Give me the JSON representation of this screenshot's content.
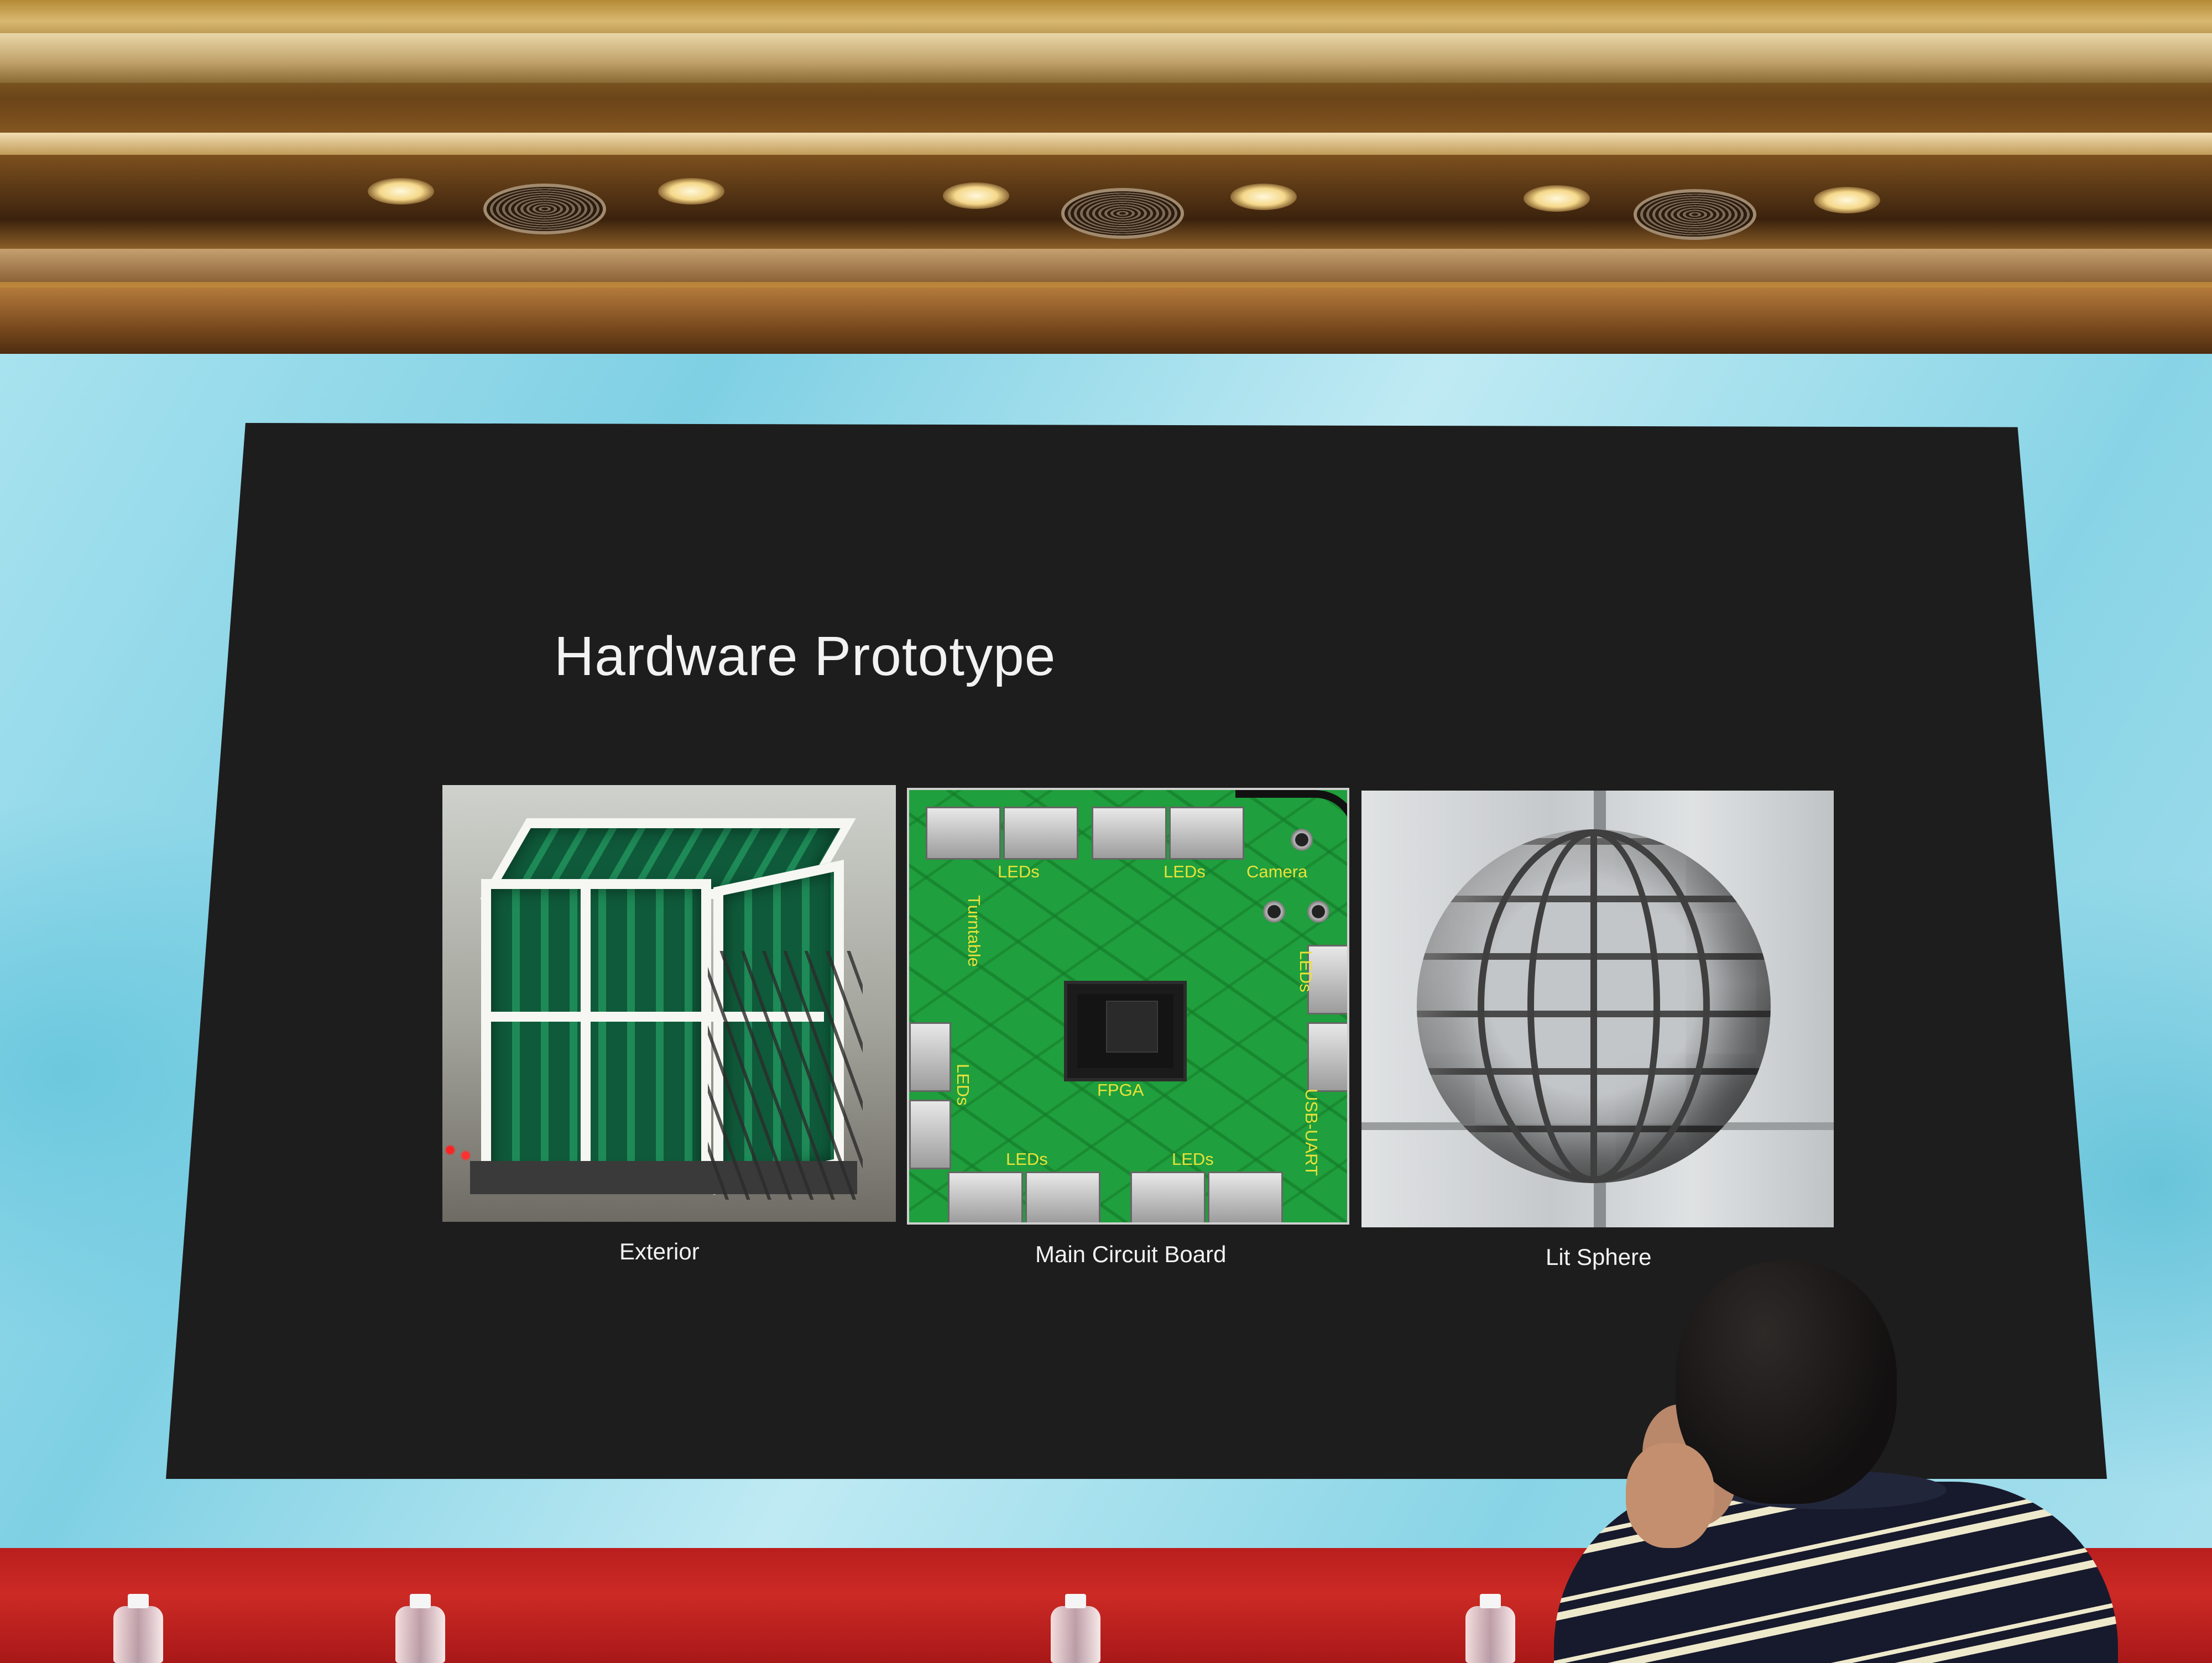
{
  "slide": {
    "title": "Hardware Prototype",
    "photos": [
      {
        "caption": "Exterior"
      },
      {
        "caption": "Main Circuit Board",
        "board_labels": {
          "leds_top_left": "LEDs",
          "leds_top_right": "LEDs",
          "camera": "Camera",
          "turntable": "Turntable",
          "fpga": "FPGA",
          "leds_left": "LEDs",
          "leds_right": "LEDs",
          "usb_uart": "USB-UART",
          "leds_bottom_left": "LEDs",
          "leds_bottom_right": "LEDs"
        }
      },
      {
        "caption": "Lit Sphere"
      }
    ]
  },
  "colors": {
    "slide_background": "#1d1d1d",
    "led_wall": "#8fd6e8",
    "board_label": "#e9e23a",
    "stage_edge": "#c0221f"
  }
}
